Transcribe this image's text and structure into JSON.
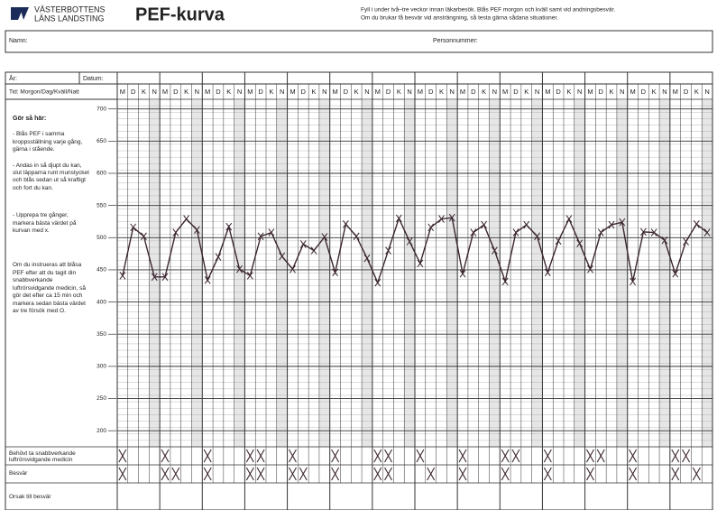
{
  "header": {
    "logo_line1": "VÄSTERBOTTENS",
    "logo_line2": "LÄNS LANDSTING",
    "title": "PEF-kurva",
    "instructions": [
      "Fyll i under två–tre veckor innan läkarbesök. Blås PEF morgon och kväll samt vid andningsbesvär.",
      "Om du brukar få besvär vid ansträngning, så testa gärna sådana situationer."
    ]
  },
  "form": {
    "name_label": "Namn:",
    "personnummer_label": "Personnummer:",
    "year_label": "År:",
    "date_label": "Datum:",
    "time_label": "Tid: Morgon/Dag/Kväll/Natt",
    "instructions_heading": "Gör så här:",
    "instructions": [
      "- Blås PEF i samma kroppsställning varje gång, gärna i stående.",
      "- Andas in så djupt du kan, slut läpparna runt munstycket och blås sedan ut så kraftigt och fort du kan.",
      "- Upprepa tre gånger, markera bästa värdet på kurvan med x.",
      "Om du instrueras att blåsa PEF efter att du tagit din snabbverkande luftrörsvidgande medicin, så gör det efter ca 15 min och markera sedan bästa värdet av tre försök med O."
    ],
    "row_labels": [
      "Behövt ta snabbverkande luftrörsvidgande medicin",
      "Besvär",
      "Orsak till besvär"
    ]
  },
  "chart_data": {
    "type": "line",
    "slot_labels": [
      "M",
      "D",
      "K",
      "N"
    ],
    "series": [
      {
        "color": "#3b2630",
        "values": [
          441,
          516,
          502,
          439,
          439,
          508,
          529,
          512,
          434,
          470,
          517,
          451,
          441,
          502,
          508,
          471,
          451,
          490,
          480,
          501,
          446,
          521,
          502,
          468,
          430,
          480,
          530,
          494,
          460,
          516,
          529,
          531,
          444,
          508,
          520,
          480,
          432,
          508,
          520,
          502,
          446,
          495,
          529,
          491,
          451,
          508,
          520,
          524,
          432,
          509,
          508,
          496,
          444,
          494,
          521,
          508
        ]
      }
    ],
    "ylim": [
      175,
      715
    ],
    "yticks": [
      200,
      250,
      300,
      350,
      400,
      450,
      500,
      550,
      600,
      650,
      700
    ],
    "grid": true
  }
}
